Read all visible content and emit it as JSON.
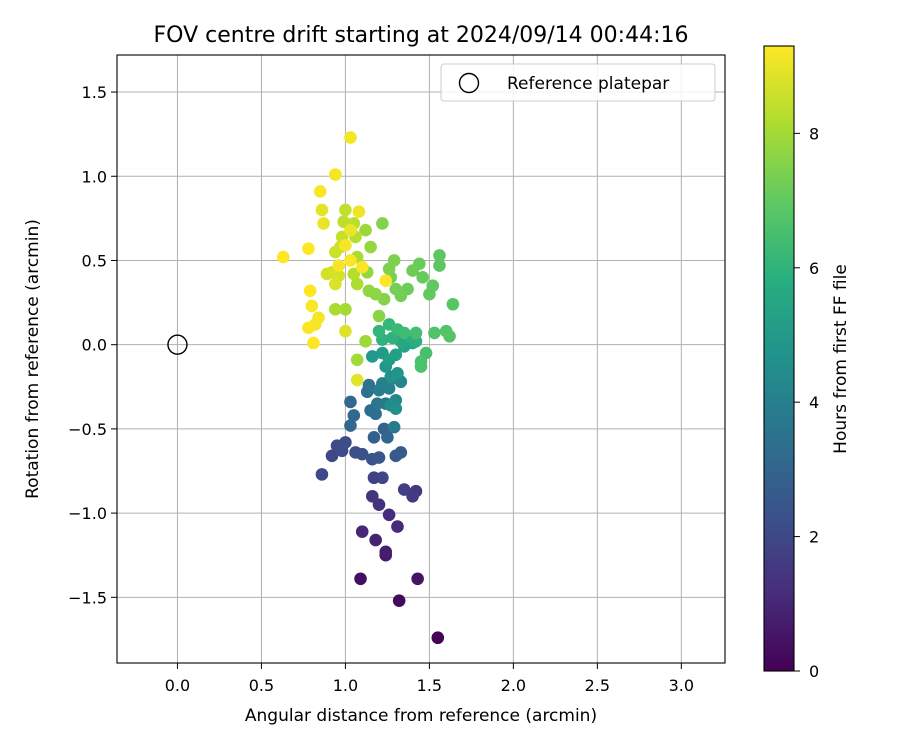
{
  "chart_data": {
    "type": "scatter",
    "title": "FOV centre drift starting at 2024/09/14 00:44:16",
    "xlabel": "Angular distance from reference (arcmin)",
    "ylabel": "Rotation from reference (arcmin)",
    "xlim": [
      -0.36,
      3.26
    ],
    "ylim": [
      -1.89,
      1.72
    ],
    "xticks": [
      "0.0",
      "0.5",
      "1.0",
      "1.5",
      "2.0",
      "2.5",
      "3.0"
    ],
    "xtick_values": [
      0,
      0.5,
      1,
      1.5,
      2,
      2.5,
      3
    ],
    "yticks": [
      "1.5",
      "1.0",
      "0.5",
      "0.0",
      "−0.5",
      "−1.0",
      "−1.5"
    ],
    "ytick_values": [
      1.5,
      1,
      0.5,
      0,
      -0.5,
      -1,
      -1.5
    ],
    "grid": true,
    "legend": {
      "position": "top-right",
      "entries": [
        {
          "label": "Reference platepar",
          "marker": "open-circle"
        }
      ]
    },
    "reference_point": {
      "x": 0,
      "y": 0
    },
    "colorbar": {
      "label": "Hours from first FF file",
      "colormap": "viridis",
      "range": [
        0,
        9.3
      ],
      "ticks": [
        "0",
        "2",
        "4",
        "6",
        "8"
      ],
      "tick_values": [
        0,
        2,
        4,
        6,
        8
      ]
    },
    "points": [
      [
        1.55,
        -1.74,
        0.05
      ],
      [
        1.32,
        -1.52,
        0.2
      ],
      [
        1.09,
        -1.39,
        0.35
      ],
      [
        1.43,
        -1.39,
        0.5
      ],
      [
        1.24,
        -1.25,
        0.65
      ],
      [
        1.24,
        -1.23,
        0.75
      ],
      [
        1.18,
        -1.16,
        0.85
      ],
      [
        1.1,
        -1.11,
        1.0
      ],
      [
        1.31,
        -1.08,
        1.1
      ],
      [
        1.26,
        -1.01,
        1.2
      ],
      [
        1.2,
        -0.95,
        1.3
      ],
      [
        1.16,
        -0.9,
        1.4
      ],
      [
        1.42,
        -0.87,
        1.5
      ],
      [
        1.4,
        -0.9,
        1.6
      ],
      [
        1.35,
        -0.86,
        1.7
      ],
      [
        1.17,
        -0.79,
        1.8
      ],
      [
        1.22,
        -0.79,
        1.9
      ],
      [
        0.86,
        -0.77,
        2.0
      ],
      [
        0.92,
        -0.66,
        2.05
      ],
      [
        0.95,
        -0.6,
        2.1
      ],
      [
        0.98,
        -0.63,
        2.15
      ],
      [
        1.0,
        -0.58,
        2.2
      ],
      [
        1.06,
        -0.64,
        2.25
      ],
      [
        1.1,
        -0.65,
        2.3
      ],
      [
        1.16,
        -0.68,
        2.4
      ],
      [
        1.2,
        -0.67,
        2.5
      ],
      [
        1.3,
        -0.66,
        2.6
      ],
      [
        1.33,
        -0.64,
        2.7
      ],
      [
        1.17,
        -0.55,
        2.8
      ],
      [
        1.23,
        -0.5,
        2.9
      ],
      [
        1.25,
        -0.55,
        3.0
      ],
      [
        1.03,
        -0.48,
        3.1
      ],
      [
        1.05,
        -0.42,
        3.15
      ],
      [
        1.03,
        -0.34,
        3.2
      ],
      [
        1.15,
        -0.39,
        3.3
      ],
      [
        1.18,
        -0.41,
        3.35
      ],
      [
        1.13,
        -0.28,
        3.4
      ],
      [
        1.14,
        -0.24,
        3.5
      ],
      [
        1.19,
        -0.35,
        3.6
      ],
      [
        1.24,
        -0.35,
        3.7
      ],
      [
        1.29,
        -0.49,
        3.8
      ],
      [
        1.2,
        -0.27,
        3.9
      ],
      [
        1.22,
        -0.23,
        4.0
      ],
      [
        1.26,
        -0.26,
        4.1
      ],
      [
        1.28,
        -0.2,
        4.2
      ],
      [
        1.33,
        -0.22,
        4.3
      ],
      [
        1.3,
        -0.33,
        4.4
      ],
      [
        1.27,
        -0.36,
        4.5
      ],
      [
        1.3,
        -0.38,
        4.6
      ],
      [
        1.27,
        -0.19,
        4.7
      ],
      [
        1.31,
        -0.17,
        4.8
      ],
      [
        1.24,
        -0.13,
        4.9
      ],
      [
        1.16,
        -0.07,
        5.0
      ],
      [
        1.22,
        -0.05,
        5.1
      ],
      [
        1.26,
        -0.09,
        5.2
      ],
      [
        1.3,
        -0.06,
        5.3
      ],
      [
        1.35,
        -0.01,
        5.4
      ],
      [
        1.4,
        0.01,
        5.5
      ],
      [
        1.33,
        0.02,
        5.6
      ],
      [
        1.38,
        0.05,
        5.7
      ],
      [
        1.42,
        0.02,
        5.8
      ],
      [
        1.28,
        0.04,
        5.9
      ],
      [
        1.22,
        0.03,
        6.0
      ],
      [
        1.2,
        0.08,
        6.1
      ],
      [
        1.26,
        0.12,
        6.2
      ],
      [
        1.31,
        0.09,
        6.3
      ],
      [
        1.35,
        0.07,
        6.4
      ],
      [
        1.42,
        0.07,
        6.5
      ],
      [
        1.48,
        -0.05,
        6.55
      ],
      [
        1.45,
        -0.13,
        6.6
      ],
      [
        1.45,
        -0.1,
        6.65
      ],
      [
        1.53,
        0.07,
        6.7
      ],
      [
        1.6,
        0.08,
        6.75
      ],
      [
        1.62,
        0.05,
        6.8
      ],
      [
        1.64,
        0.24,
        6.85
      ],
      [
        1.56,
        0.47,
        6.9
      ],
      [
        1.56,
        0.53,
        6.95
      ],
      [
        1.52,
        0.35,
        7.0
      ],
      [
        1.5,
        0.3,
        7.05
      ],
      [
        1.46,
        0.4,
        7.1
      ],
      [
        1.44,
        0.48,
        7.15
      ],
      [
        1.4,
        0.44,
        7.2
      ],
      [
        1.37,
        0.33,
        7.25
      ],
      [
        1.33,
        0.29,
        7.3
      ],
      [
        1.3,
        0.33,
        7.35
      ],
      [
        1.27,
        0.4,
        7.4
      ],
      [
        1.26,
        0.45,
        7.45
      ],
      [
        1.29,
        0.5,
        7.5
      ],
      [
        1.22,
        0.72,
        7.55
      ],
      [
        1.23,
        0.27,
        7.6
      ],
      [
        1.2,
        0.17,
        7.65
      ],
      [
        1.18,
        0.3,
        7.7
      ],
      [
        1.14,
        0.32,
        7.75
      ],
      [
        1.13,
        0.43,
        7.8
      ],
      [
        1.15,
        0.58,
        7.85
      ],
      [
        1.12,
        0.68,
        7.9
      ],
      [
        1.12,
        0.02,
        7.95
      ],
      [
        1.07,
        -0.09,
        8.0
      ],
      [
        1.0,
        0.21,
        8.05
      ],
      [
        0.94,
        0.21,
        8.1
      ],
      [
        1.07,
        0.52,
        8.15
      ],
      [
        1.07,
        0.36,
        8.2
      ],
      [
        1.05,
        0.42,
        8.25
      ],
      [
        1.06,
        0.64,
        8.3
      ],
      [
        1.05,
        0.72,
        8.35
      ],
      [
        0.99,
        0.73,
        8.4
      ],
      [
        1.0,
        0.8,
        8.45
      ],
      [
        0.98,
        0.64,
        8.5
      ],
      [
        0.97,
        0.58,
        8.55
      ],
      [
        0.94,
        0.55,
        8.6
      ],
      [
        0.92,
        0.43,
        8.65
      ],
      [
        0.89,
        0.42,
        8.7
      ],
      [
        0.96,
        0.41,
        8.75
      ],
      [
        0.94,
        0.36,
        8.8
      ],
      [
        1.0,
        0.08,
        8.85
      ],
      [
        1.07,
        -0.21,
        8.9
      ],
      [
        0.86,
        0.8,
        8.95
      ],
      [
        0.87,
        0.72,
        9.0
      ],
      [
        1.03,
        0.68,
        9.05
      ],
      [
        1.08,
        0.79,
        9.1
      ],
      [
        1.03,
        1.23,
        9.15
      ],
      [
        0.94,
        1.01,
        9.2
      ],
      [
        0.85,
        0.91,
        9.25
      ],
      [
        0.78,
        0.57,
        9.3
      ],
      [
        0.63,
        0.52,
        9.3
      ],
      [
        0.79,
        0.32,
        9.3
      ],
      [
        0.8,
        0.23,
        9.25
      ],
      [
        0.84,
        0.16,
        9.2
      ],
      [
        0.82,
        0.12,
        9.2
      ],
      [
        0.78,
        0.1,
        9.25
      ],
      [
        0.81,
        0.01,
        9.3
      ],
      [
        1.24,
        0.38,
        9.3
      ],
      [
        1.1,
        0.46,
        9.25
      ],
      [
        1.0,
        0.59,
        9.2
      ],
      [
        0.96,
        0.47,
        9.2
      ],
      [
        1.03,
        0.5,
        9.25
      ]
    ]
  }
}
